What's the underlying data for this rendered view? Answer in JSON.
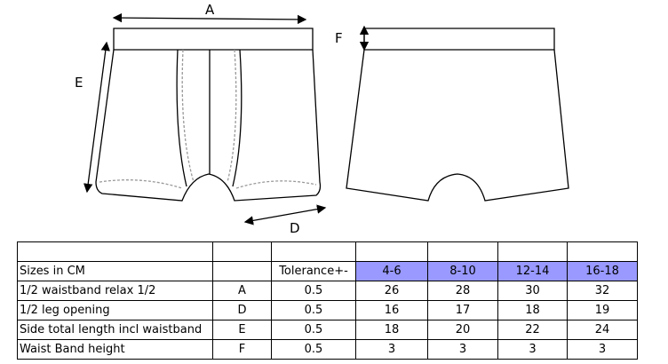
{
  "diagram": {
    "labels": {
      "A": "A",
      "D": "D",
      "E": "E",
      "F": "F"
    }
  },
  "table": {
    "header": {
      "label": "Sizes in CM",
      "code": "",
      "tolerance": "Tolerance+-",
      "sizes": [
        "4-6",
        "8-10",
        "12-14",
        "16-18"
      ]
    },
    "rows": [
      {
        "name": "1/2 waistband relax 1/2",
        "code": "A",
        "tolerance": "0.5",
        "values": [
          "26",
          "28",
          "30",
          "32"
        ]
      },
      {
        "name": "1/2 leg opening",
        "code": "D",
        "tolerance": "0.5",
        "values": [
          "16",
          "17",
          "18",
          "19"
        ]
      },
      {
        "name": "Side total length incl waistband",
        "code": "E",
        "tolerance": "0.5",
        "values": [
          "18",
          "20",
          "22",
          "24"
        ]
      },
      {
        "name": "Waist Band height",
        "code": "F",
        "tolerance": "0.5",
        "values": [
          "3",
          "3",
          "3",
          "3"
        ]
      }
    ],
    "size_header_color": "#9999ff"
  }
}
